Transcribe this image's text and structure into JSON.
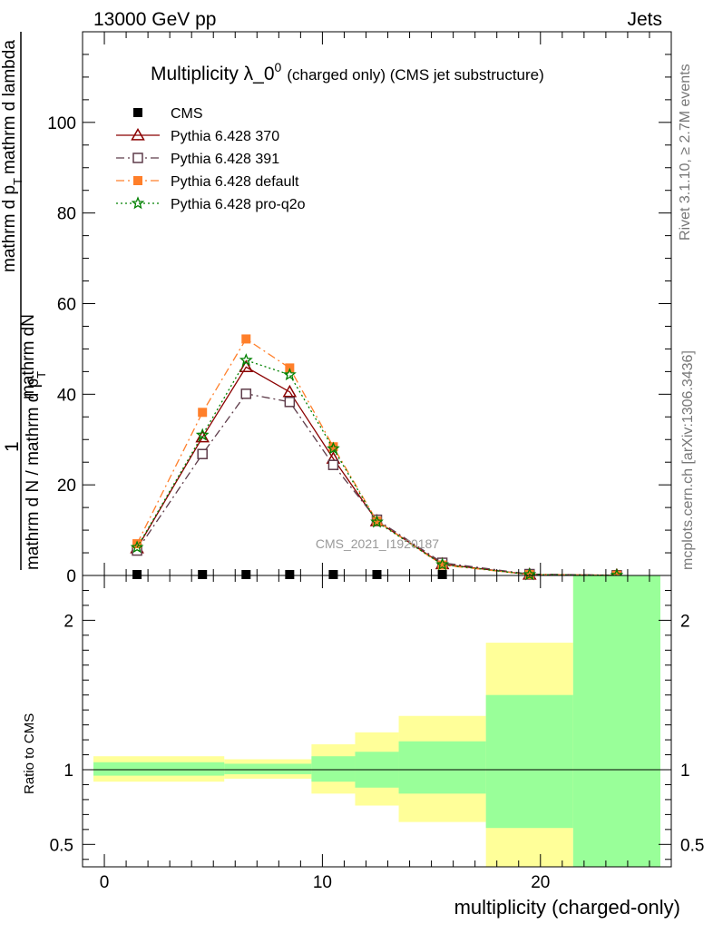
{
  "header": {
    "left": "13000 GeV pp",
    "right": "Jets"
  },
  "side_labels": {
    "rivet": "Rivet 3.1.10, ≥ 2.7M events",
    "mcplots": "mcplots.cern.ch [arXiv:1306.3436]"
  },
  "watermark": "CMS_2021_I1920187",
  "chart_data": [
    {
      "type": "line",
      "title": "Multiplicity λ_0⁰ (charged only) (CMS jet substructure)",
      "title_main": "Multiplicity λ_0",
      "title_sup": "0",
      "title_rest": "(charged only) (CMS jet substructure)",
      "xlabel": "",
      "ylabel_numerator_prefix": "1",
      "ylabel_numerator": "mathrm dN",
      "ylabel_numerator_2": "mathrm d p",
      "ylabel_numerator_2b": "T",
      "ylabel_numerator_3": "mathrm d lambda",
      "ylabel_denominator": "mathrm d N / mathrm d p",
      "ylabel_denominator_b": "T",
      "ylim": [
        0,
        120
      ],
      "xlim": [
        -1,
        26
      ],
      "yticks": [
        0,
        20,
        40,
        60,
        80,
        100
      ],
      "legend_position": "top-left",
      "series": [
        {
          "name": "CMS",
          "color": "#000000",
          "marker": "filled-square",
          "x": [
            1.5,
            4.5,
            6.5,
            8.5,
            10.5,
            12.5,
            15.5,
            19.5,
            23.5
          ],
          "values": [
            0.1,
            0.1,
            0.1,
            0.1,
            0.1,
            0.1,
            0.1,
            0.1,
            0.1
          ]
        },
        {
          "name": "Pythia 6.428 370",
          "color": "#8b0000",
          "marker": "open-triangle",
          "dash": "solid",
          "x": [
            1.5,
            4.5,
            6.5,
            8.5,
            10.5,
            12.5,
            15.5,
            19.5,
            23.5
          ],
          "values": [
            6.0,
            30.5,
            46.0,
            40.5,
            25.8,
            12.0,
            2.5,
            0.2,
            0.05
          ]
        },
        {
          "name": "Pythia 6.428 391",
          "color": "#5e3c4a",
          "marker": "open-square",
          "dash": "dash-dot",
          "x": [
            1.5,
            4.5,
            6.5,
            8.5,
            10.5,
            12.5,
            15.5,
            19.5,
            23.5
          ],
          "values": [
            5.5,
            26.8,
            40.1,
            38.3,
            24.4,
            12.3,
            2.8,
            0.3,
            0.05
          ]
        },
        {
          "name": "Pythia 6.428 default",
          "color": "#ff7f2a",
          "marker": "filled-square",
          "dash": "dash-dot",
          "x": [
            1.5,
            4.5,
            6.5,
            8.5,
            10.5,
            12.5,
            15.5,
            19.5,
            23.5
          ],
          "values": [
            7.0,
            36.0,
            52.2,
            45.8,
            28.4,
            12.0,
            2.3,
            0.2,
            0.05
          ]
        },
        {
          "name": "Pythia 6.428 pro-q2o",
          "color": "#008000",
          "marker": "star",
          "dash": "dotted",
          "x": [
            1.5,
            4.5,
            6.5,
            8.5,
            10.5,
            12.5,
            15.5,
            19.5,
            23.5
          ],
          "values": [
            6.2,
            31.0,
            47.5,
            44.3,
            28.0,
            11.8,
            2.4,
            0.2,
            0.05
          ]
        }
      ]
    },
    {
      "type": "area",
      "title": "",
      "xlabel": "multiplicity (charged-only)",
      "ylabel": "Ratio to CMS",
      "ylim": [
        0.35,
        2.3
      ],
      "xlim": [
        -1,
        26
      ],
      "xticks": [
        0,
        10,
        20
      ],
      "yticks": [
        0.5,
        1,
        2
      ],
      "ytick_labels": [
        "0.5",
        "1",
        "2"
      ],
      "reference_line": 1,
      "bins": [
        {
          "x0": -0.5,
          "x1": 5.5,
          "yellow": [
            0.92,
            1.09
          ],
          "green": [
            0.96,
            1.05
          ]
        },
        {
          "x0": 5.5,
          "x1": 9.5,
          "yellow": [
            0.94,
            1.07
          ],
          "green": [
            0.97,
            1.04
          ]
        },
        {
          "x0": 9.5,
          "x1": 11.5,
          "yellow": [
            0.84,
            1.17
          ],
          "green": [
            0.92,
            1.09
          ]
        },
        {
          "x0": 11.5,
          "x1": 13.5,
          "yellow": [
            0.76,
            1.25
          ],
          "green": [
            0.88,
            1.12
          ]
        },
        {
          "x0": 13.5,
          "x1": 17.5,
          "yellow": [
            0.65,
            1.36
          ],
          "green": [
            0.84,
            1.19
          ]
        },
        {
          "x0": 17.5,
          "x1": 21.5,
          "yellow": [
            0.35,
            1.85
          ],
          "green": [
            0.61,
            1.5
          ]
        },
        {
          "x0": 21.5,
          "x1": 25.5,
          "yellow": [
            0.35,
            2.3
          ],
          "green": [
            0.35,
            2.3
          ]
        }
      ]
    }
  ],
  "colors": {
    "band_yellow": "#ffff99",
    "band_green": "#99ff99",
    "watermark": "#999999",
    "side_text": "#777777"
  }
}
